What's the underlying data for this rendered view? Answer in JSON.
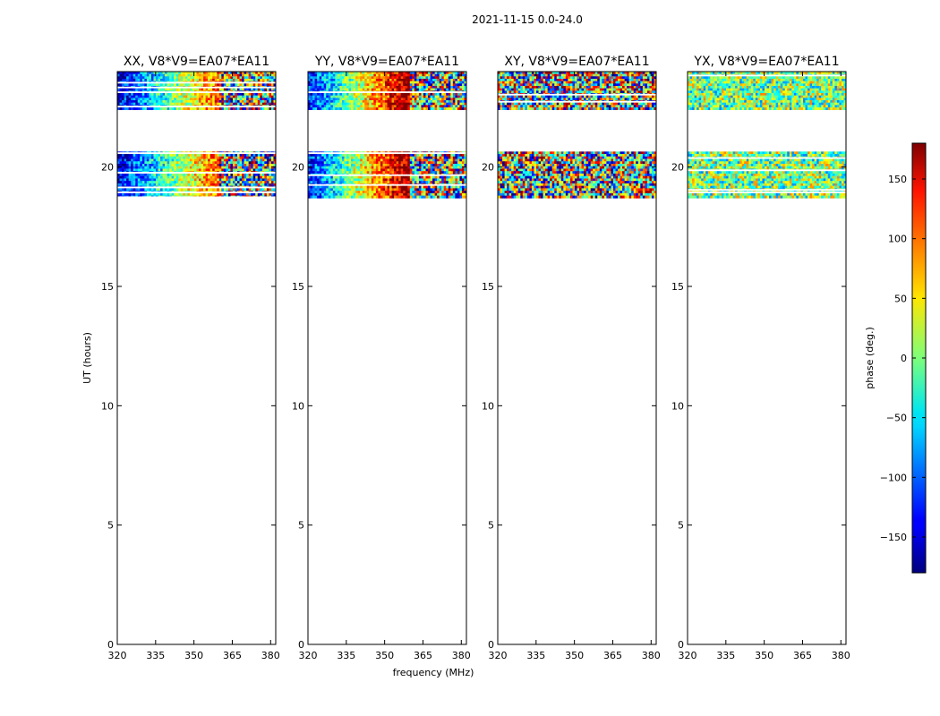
{
  "chart_data": {
    "type": "heatmap",
    "suptitle": "2021-11-15 0.0-24.0",
    "xlabel": "frequency (MHz)",
    "ylabel": "UT (hours)",
    "xlim": [
      320,
      382
    ],
    "ylim": [
      0,
      24
    ],
    "xticks": [
      "320",
      "335",
      "350",
      "365",
      "380"
    ],
    "yticks": [
      "0",
      "5",
      "10",
      "15",
      "20"
    ],
    "panels": [
      {
        "title": "XX, V8*V9=EA07*EA11",
        "kind": "parallel"
      },
      {
        "title": "YY, V8*V9=EA07*EA11",
        "kind": "parallel"
      },
      {
        "title": "XY, V8*V9=EA07*EA11",
        "kind": "cross"
      },
      {
        "title": "YX, V8*V9=EA07*EA11",
        "kind": "cross"
      }
    ],
    "data_blocks_ut": [
      [
        18.7,
        20.65
      ],
      [
        22.4,
        24.0
      ]
    ],
    "colorbar": {
      "label": "phase (deg.)",
      "range": [
        -180,
        180
      ],
      "ticks": [
        "150",
        "100",
        "50",
        "0",
        "−50",
        "−100",
        "−150"
      ],
      "tick_values": [
        150,
        100,
        50,
        0,
        -50,
        -100,
        -150
      ]
    }
  }
}
